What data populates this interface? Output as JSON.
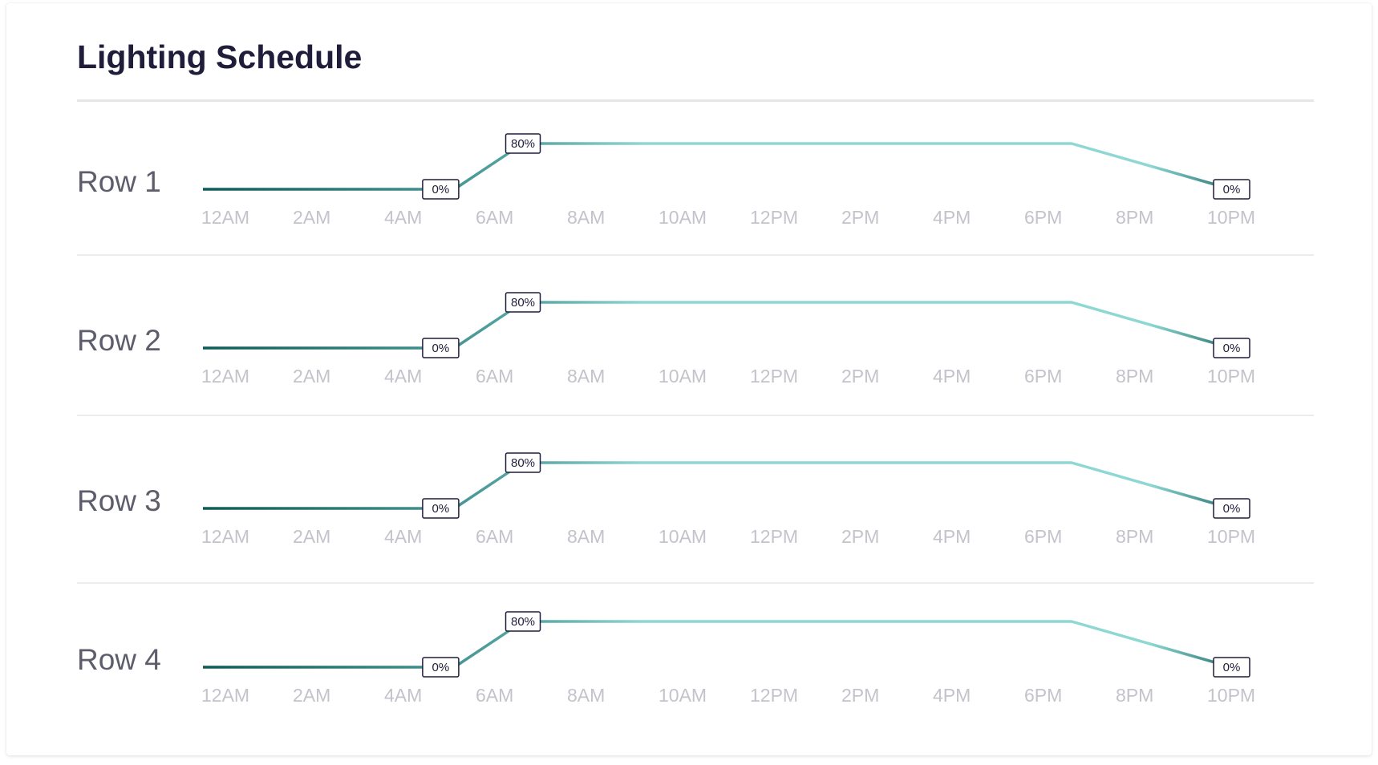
{
  "title": "Lighting Schedule",
  "colors": {
    "dark": "#0e5a56",
    "mid": "#5aaaa8",
    "light": "#8ed8d4",
    "tick": "#c3c3cb",
    "label_border": "#1f1d3a"
  },
  "chart_data": [
    {
      "type": "line",
      "title": "Row 1",
      "x_ticks": [
        "12AM",
        "2AM",
        "4AM",
        "6AM",
        "8AM",
        "10AM",
        "12PM",
        "2PM",
        "4PM",
        "6PM",
        "8PM",
        "10PM"
      ],
      "xlim": [
        0,
        23
      ],
      "ylim": [
        0,
        80
      ],
      "x_hours": [
        0,
        5.5,
        7,
        19,
        22.5
      ],
      "y_percent": [
        0,
        0,
        80,
        80,
        0
      ],
      "point_labels": [
        {
          "x_hour": 5.2,
          "text": "0%"
        },
        {
          "x_hour": 7.0,
          "text": "80%"
        },
        {
          "x_hour": 22.5,
          "text": "0%"
        }
      ]
    },
    {
      "type": "line",
      "title": "Row 2",
      "x_ticks": [
        "12AM",
        "2AM",
        "4AM",
        "6AM",
        "8AM",
        "10AM",
        "12PM",
        "2PM",
        "4PM",
        "6PM",
        "8PM",
        "10PM"
      ],
      "xlim": [
        0,
        23
      ],
      "ylim": [
        0,
        80
      ],
      "x_hours": [
        0,
        5.5,
        7,
        19,
        22.5
      ],
      "y_percent": [
        0,
        0,
        80,
        80,
        0
      ],
      "point_labels": [
        {
          "x_hour": 5.2,
          "text": "0%"
        },
        {
          "x_hour": 7.0,
          "text": "80%"
        },
        {
          "x_hour": 22.5,
          "text": "0%"
        }
      ]
    },
    {
      "type": "line",
      "title": "Row 3",
      "x_ticks": [
        "12AM",
        "2AM",
        "4AM",
        "6AM",
        "8AM",
        "10AM",
        "12PM",
        "2PM",
        "4PM",
        "6PM",
        "8PM",
        "10PM"
      ],
      "xlim": [
        0,
        23
      ],
      "ylim": [
        0,
        80
      ],
      "x_hours": [
        0,
        5.5,
        7,
        19,
        22.5
      ],
      "y_percent": [
        0,
        0,
        80,
        80,
        0
      ],
      "point_labels": [
        {
          "x_hour": 5.2,
          "text": "0%"
        },
        {
          "x_hour": 7.0,
          "text": "80%"
        },
        {
          "x_hour": 22.5,
          "text": "0%"
        }
      ]
    },
    {
      "type": "line",
      "title": "Row 4",
      "x_ticks": [
        "12AM",
        "2AM",
        "4AM",
        "6AM",
        "8AM",
        "10AM",
        "12PM",
        "2PM",
        "4PM",
        "6PM",
        "8PM",
        "10PM"
      ],
      "xlim": [
        0,
        23
      ],
      "ylim": [
        0,
        80
      ],
      "x_hours": [
        0,
        5.5,
        7,
        19,
        22.5
      ],
      "y_percent": [
        0,
        0,
        80,
        80,
        0
      ],
      "point_labels": [
        {
          "x_hour": 5.2,
          "text": "0%"
        },
        {
          "x_hour": 7.0,
          "text": "80%"
        },
        {
          "x_hour": 22.5,
          "text": "0%"
        }
      ]
    }
  ]
}
